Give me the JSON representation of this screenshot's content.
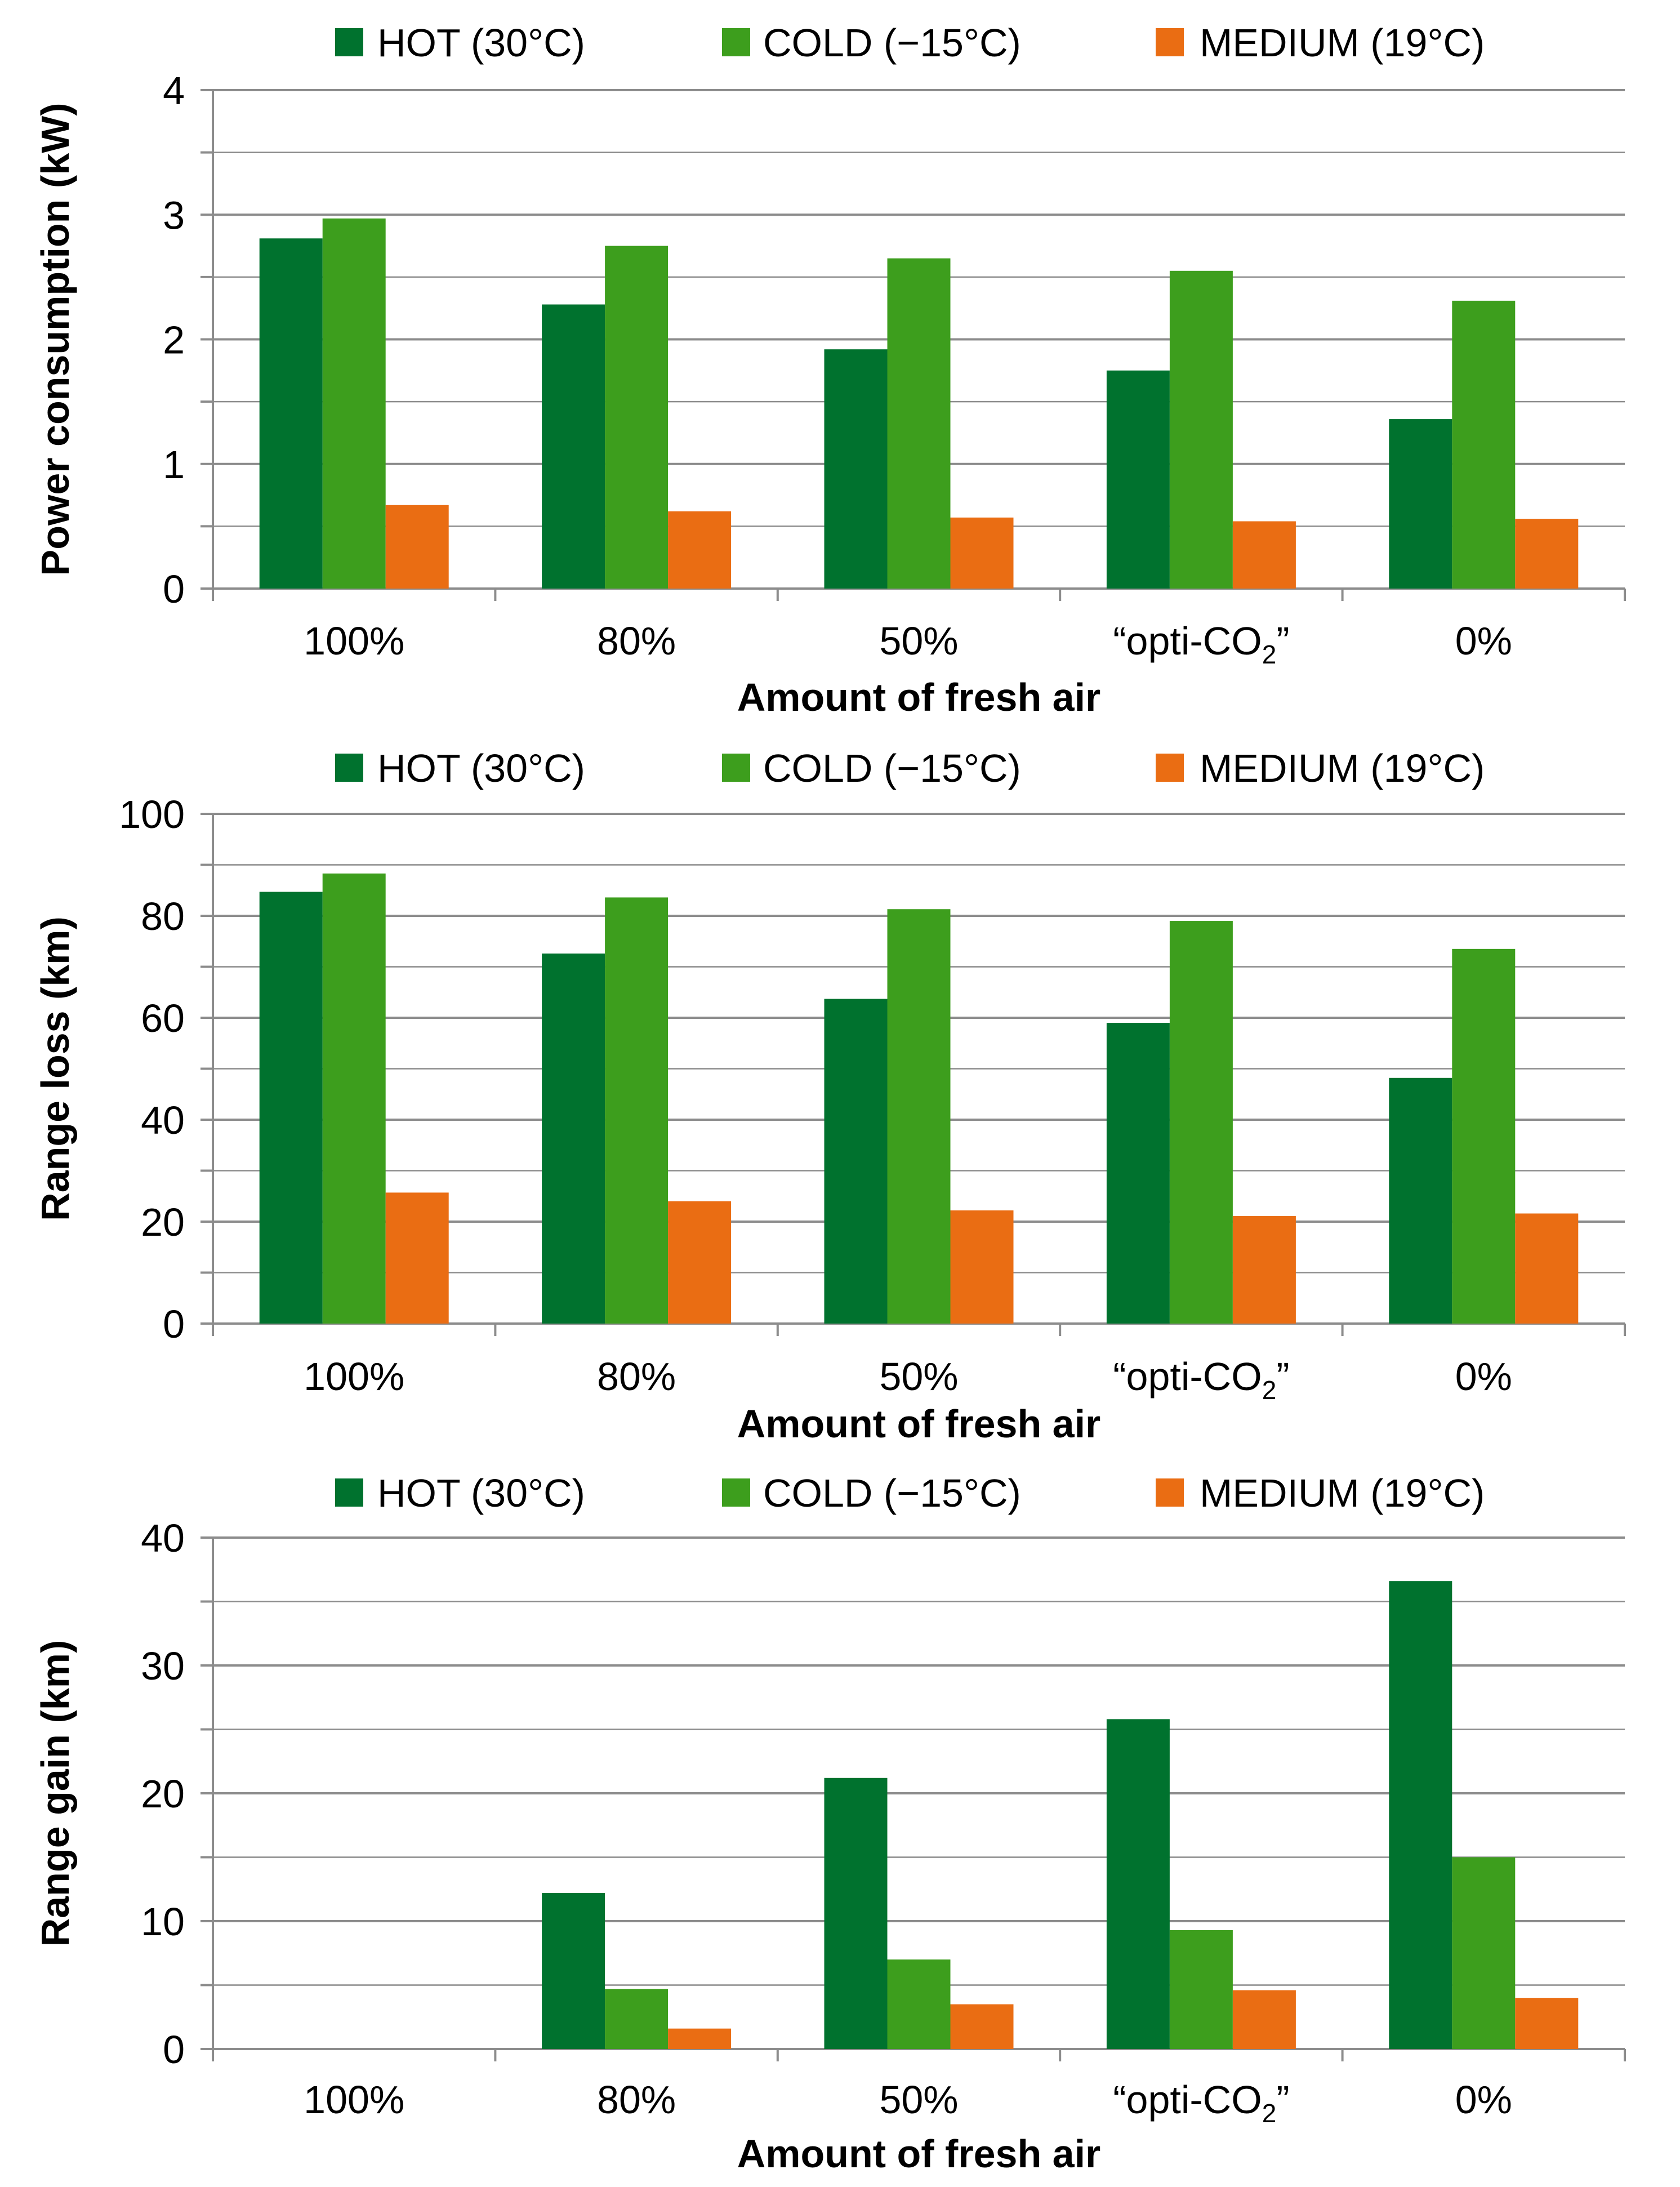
{
  "colors": {
    "hot": "#00722E",
    "cold": "#3D9E1D",
    "medium": "#EA6D13",
    "grid": "#8c8c8c",
    "axis": "#8c8c8c"
  },
  "legend": [
    {
      "key": "hot",
      "label": "HOT (30°C)"
    },
    {
      "key": "cold",
      "label": "COLD (−15°C)"
    },
    {
      "key": "medium",
      "label": "MEDIUM (19°C)"
    }
  ],
  "chart_data": [
    {
      "type": "bar",
      "categories": [
        "100%",
        "80%",
        "50%",
        "“opti-CO₂”",
        "0%"
      ],
      "xlabel": "Amount of fresh air",
      "ylabel": "Power consumption (kW)",
      "ylim": [
        0,
        4
      ],
      "yticks": [
        "0",
        "1",
        "2",
        "3",
        "4"
      ],
      "grid": true,
      "legend_position": "top",
      "series": [
        {
          "name": "HOT (30°C)",
          "values": [
            2.81,
            2.28,
            1.92,
            1.75,
            1.36
          ]
        },
        {
          "name": "COLD (−15°C)",
          "values": [
            2.97,
            2.75,
            2.65,
            2.55,
            2.31
          ]
        },
        {
          "name": "MEDIUM (19°C)",
          "values": [
            0.67,
            0.62,
            0.57,
            0.54,
            0.56
          ]
        }
      ]
    },
    {
      "type": "bar",
      "categories": [
        "100%",
        "80%",
        "50%",
        "“opti-CO₂”",
        "0%"
      ],
      "xlabel": "Amount of fresh air",
      "ylabel": "Range loss (km)",
      "ylim": [
        0,
        100
      ],
      "yticks": [
        "0",
        "20",
        "40",
        "60",
        "80",
        "100"
      ],
      "grid": true,
      "legend_position": "top",
      "series": [
        {
          "name": "HOT (30°C)",
          "values": [
            84.7,
            72.6,
            63.7,
            59.0,
            48.2
          ]
        },
        {
          "name": "COLD (−15°C)",
          "values": [
            88.3,
            83.6,
            81.3,
            79.0,
            73.5
          ]
        },
        {
          "name": "MEDIUM (19°C)",
          "values": [
            25.7,
            24.0,
            22.2,
            21.1,
            21.6
          ]
        }
      ]
    },
    {
      "type": "bar",
      "categories": [
        "100%",
        "80%",
        "50%",
        "“opti-CO₂”",
        "0%"
      ],
      "xlabel": "Amount of fresh air",
      "ylabel": "Range gain (km)",
      "ylim": [
        0,
        40
      ],
      "yticks": [
        "0",
        "10",
        "20",
        "30",
        "40"
      ],
      "grid": true,
      "legend_position": "top",
      "series": [
        {
          "name": "HOT (30°C)",
          "values": [
            0,
            12.2,
            21.2,
            25.8,
            36.6
          ]
        },
        {
          "name": "COLD (−15°C)",
          "values": [
            0,
            4.7,
            7.0,
            9.3,
            15.0
          ]
        },
        {
          "name": "MEDIUM (19°C)",
          "values": [
            0,
            1.6,
            3.5,
            4.6,
            4.0
          ]
        }
      ]
    }
  ]
}
